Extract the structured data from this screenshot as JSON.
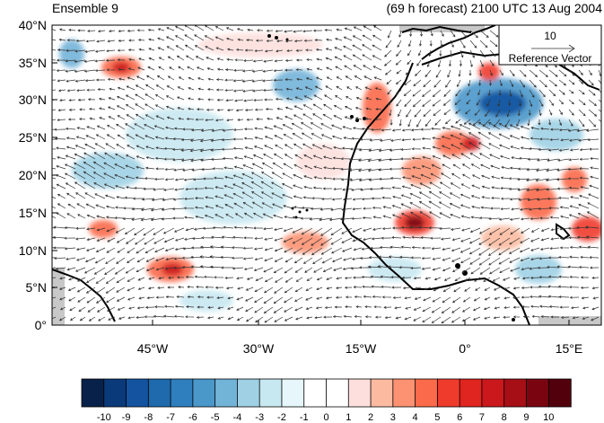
{
  "title_left": "Ensemble 9",
  "title_right": "(69 h forecast) 2100 UTC 13 Aug 2004",
  "reference_vector": {
    "magnitude": "10",
    "label": "Reference Vector"
  },
  "lat_labels": [
    "0°",
    "5°N",
    "10°N",
    "15°N",
    "20°N",
    "25°N",
    "30°N",
    "35°N",
    "40°N"
  ],
  "lon_labels": [
    "45°W",
    "30°W",
    "15°W",
    "0°",
    "15°E"
  ],
  "colorbar": {
    "labels": [
      "-10",
      "-9",
      "-8",
      "-7",
      "-6",
      "-5",
      "-4",
      "-3",
      "-2",
      "-1",
      "0",
      "1",
      "2",
      "3",
      "4",
      "5",
      "6",
      "7",
      "8",
      "9",
      "10"
    ],
    "colors": [
      "#08214a",
      "#0b3a7a",
      "#14539f",
      "#1f6aad",
      "#2f7fbf",
      "#4a97ca",
      "#72b3d8",
      "#9fd0e4",
      "#c8e8f1",
      "#e6f6fb",
      "#ffffff",
      "#ffffff",
      "#fde0dd",
      "#fcbba1",
      "#fc9272",
      "#fb6a4a",
      "#ef3b2c",
      "#e0241f",
      "#cb181d",
      "#a50f15",
      "#7a0510",
      "#52000c"
    ]
  },
  "colors": {
    "land_mask": "#c8c8c8",
    "coast": "#000000",
    "vector": "#333333"
  }
}
